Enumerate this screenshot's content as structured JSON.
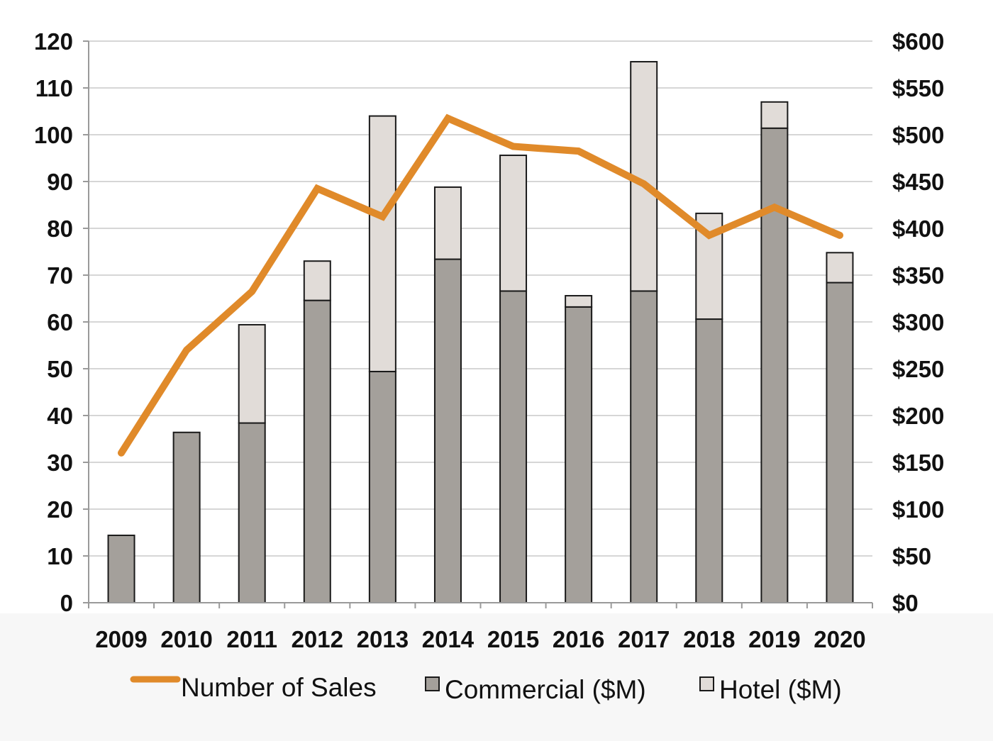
{
  "chart_data": {
    "type": "bar",
    "stacked": true,
    "categories": [
      "2009",
      "2010",
      "2011",
      "2012",
      "2013",
      "2014",
      "2015",
      "2016",
      "2017",
      "2018",
      "2019",
      "2020"
    ],
    "series": [
      {
        "name": "Commercial ($M)",
        "axis": "right",
        "color": "#a4a09b",
        "values": [
          72,
          182,
          192,
          323,
          247,
          367,
          333,
          316,
          333,
          303,
          507,
          342
        ]
      },
      {
        "name": "Hotel ($M)",
        "axis": "right",
        "color": "#e1dcd8",
        "values": [
          0,
          0,
          105,
          42,
          273,
          77,
          145,
          12,
          245,
          113,
          28,
          32
        ]
      },
      {
        "name": "Number of Sales",
        "type": "line",
        "axis": "left",
        "color": "#e08a2a",
        "values": [
          32,
          54,
          66.5,
          88.5,
          82.5,
          103.5,
          97.5,
          96.5,
          89.5,
          78.5,
          84.5,
          78.5
        ]
      }
    ],
    "y_left": {
      "ylim": [
        0,
        120
      ],
      "ticks": [
        "0",
        "10",
        "20",
        "30",
        "40",
        "50",
        "60",
        "70",
        "80",
        "90",
        "100",
        "110",
        "120"
      ]
    },
    "y_right": {
      "ylim": [
        0,
        600
      ],
      "ticks": [
        "$0",
        "$50",
        "$100",
        "$150",
        "$200",
        "$250",
        "$300",
        "$350",
        "$400",
        "$450",
        "$500",
        "$550",
        "$600"
      ]
    },
    "grid": true,
    "legend_position": "bottom",
    "legend": [
      {
        "label": "Number of Sales",
        "marker": "line",
        "color": "#e08a2a"
      },
      {
        "label": "Commercial ($M)",
        "marker": "square",
        "color": "#a4a09b"
      },
      {
        "label": "Hotel ($M)",
        "marker": "square",
        "color": "#e1dcd8"
      }
    ]
  }
}
